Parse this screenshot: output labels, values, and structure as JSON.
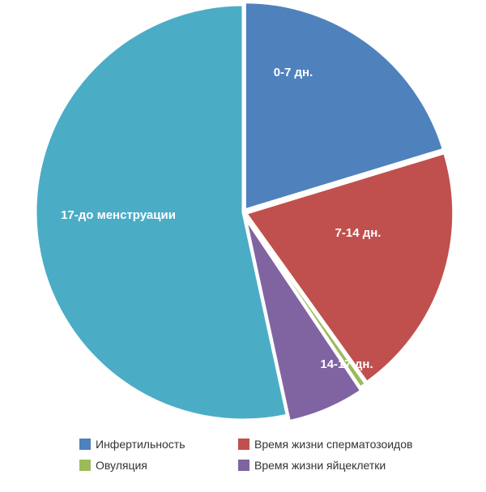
{
  "chart_data": {
    "type": "pie",
    "slices": [
      {
        "name": "Инфертильность",
        "value": 20.3,
        "label": "0-7 дн.",
        "color": "#4f81bd"
      },
      {
        "name": "Время жизни сперматозоидов",
        "value": 19.8,
        "label": "7-14 дн.",
        "color": "#c0504d"
      },
      {
        "name": "Овуляция",
        "value": 0.5,
        "label": "",
        "color": "#9bbb59"
      },
      {
        "name": "Время жизни яйцеклетки",
        "value": 6.0,
        "label": "14-17 дн.",
        "color": "#8064a2"
      },
      {
        "name": "",
        "value": 53.4,
        "label": "17-до менструации",
        "color": "#4bacc6"
      }
    ],
    "legend": {
      "placement": "bottom",
      "items": [
        {
          "label": "Инфертильность",
          "color": "#4f81bd"
        },
        {
          "label": "Время жизни сперматозоидов",
          "color": "#c0504d"
        },
        {
          "label": "Овуляция",
          "color": "#9bbb59"
        },
        {
          "label": "Время жизни яйцеклетки",
          "color": "#8064a2"
        }
      ]
    }
  }
}
